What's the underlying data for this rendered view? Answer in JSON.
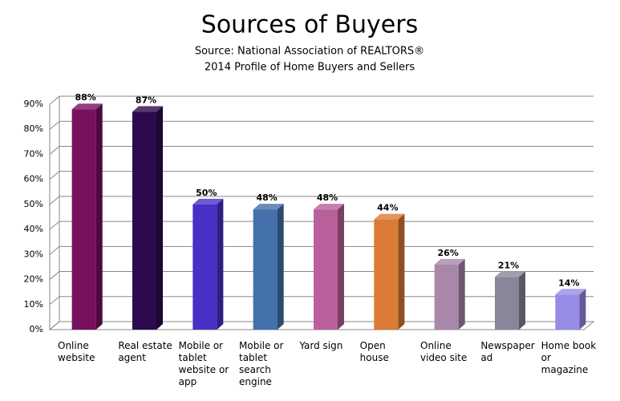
{
  "chart_data": {
    "type": "bar",
    "title": "Sources of Buyers",
    "subtitle": [
      "Source: National Association of REALTORS®",
      "2014 Profile of Home Buyers and Sellers"
    ],
    "categories": [
      "Online website",
      "Real estate agent",
      "Mobile or tablet website or app",
      "Mobile or tablet search engine",
      "Yard sign",
      "Open house",
      "Online video site",
      "Newspaper ad",
      "Home book or magazine"
    ],
    "values": [
      88,
      87,
      50,
      48,
      48,
      44,
      26,
      21,
      14
    ],
    "value_labels": [
      "88%",
      "87%",
      "50%",
      "48%",
      "48%",
      "44%",
      "26%",
      "21%",
      "14%"
    ],
    "colors": [
      "#77105f",
      "#2b0a4d",
      "#4a2fc7",
      "#4470ab",
      "#b9609a",
      "#db7b35",
      "#a887a9",
      "#8a8598",
      "#978ce6"
    ],
    "ylim": [
      0,
      90
    ],
    "yticks": [
      {
        "value": 0,
        "label": "0%"
      },
      {
        "value": 10,
        "label": "10%"
      },
      {
        "value": 20,
        "label": "20%"
      },
      {
        "value": 30,
        "label": "30%"
      },
      {
        "value": 40,
        "label": "40%"
      },
      {
        "value": 50,
        "label": "50%"
      },
      {
        "value": 60,
        "label": "60%"
      },
      {
        "value": 70,
        "label": "70%"
      },
      {
        "value": 80,
        "label": "80%"
      },
      {
        "value": 90,
        "label": "90%"
      }
    ],
    "grid": true
  }
}
